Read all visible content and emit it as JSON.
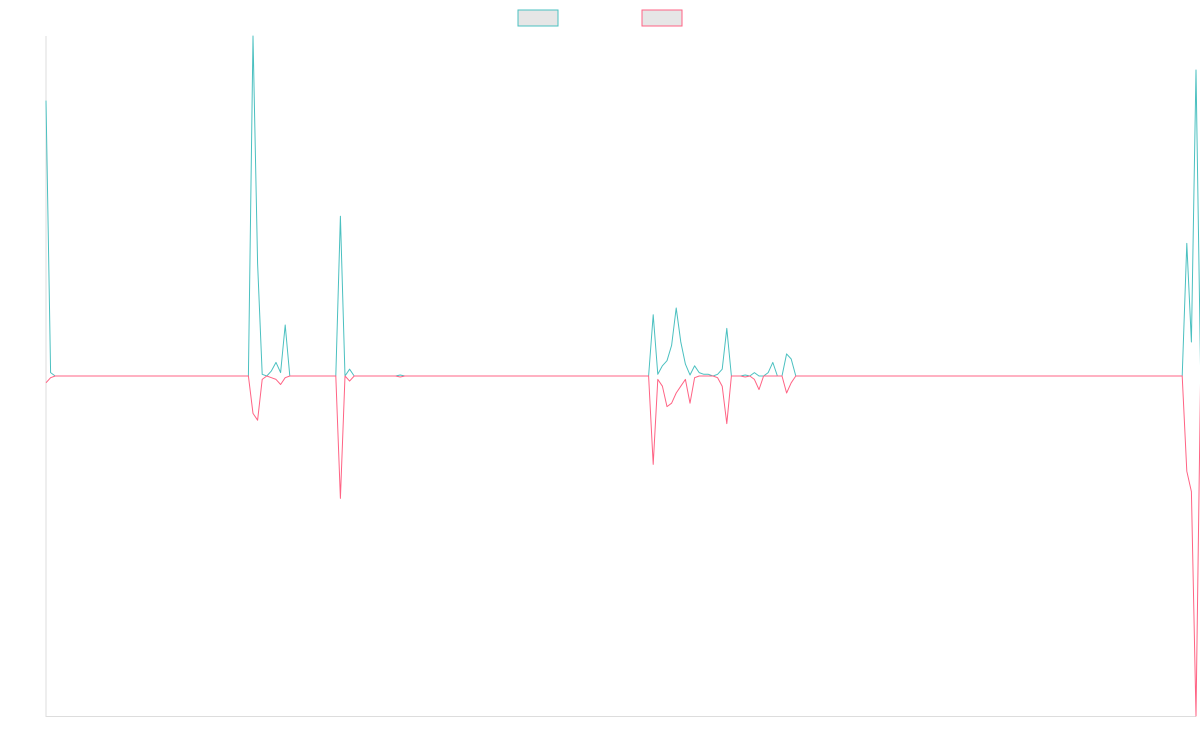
{
  "chart_data": {
    "type": "line",
    "title": "",
    "xlabel": "",
    "ylabel": "",
    "grid": false,
    "legend_position": "top",
    "ylim": [
      -1,
      1
    ],
    "x_count": 250,
    "series": [
      {
        "color": "#4bc0c0",
        "legend_fill": "#e6e6e6",
        "points": [
          [
            0,
            0.81
          ],
          [
            1,
            0.01
          ],
          [
            2,
            0
          ],
          [
            44,
            0
          ],
          [
            45,
            1.0
          ],
          [
            46,
            0.33
          ],
          [
            47,
            0.005
          ],
          [
            48,
            0
          ],
          [
            49,
            0.015
          ],
          [
            50,
            0.04
          ],
          [
            51,
            0.01
          ],
          [
            52,
            0.15
          ],
          [
            53,
            0
          ],
          [
            63,
            0
          ],
          [
            64,
            0.47
          ],
          [
            65,
            0
          ],
          [
            66,
            0.02
          ],
          [
            67,
            0
          ],
          [
            76,
            0
          ],
          [
            77,
            0.003
          ],
          [
            78,
            0
          ],
          [
            131,
            0
          ],
          [
            132,
            0.18
          ],
          [
            133,
            0.005
          ],
          [
            134,
            0.03
          ],
          [
            135,
            0.045
          ],
          [
            136,
            0.09
          ],
          [
            137,
            0.2
          ],
          [
            138,
            0.1
          ],
          [
            139,
            0.035
          ],
          [
            140,
            0.003
          ],
          [
            141,
            0.03
          ],
          [
            142,
            0.01
          ],
          [
            143,
            0.005
          ],
          [
            144,
            0.005
          ],
          [
            145,
            0
          ],
          [
            146,
            0.005
          ],
          [
            147,
            0.02
          ],
          [
            148,
            0.14
          ],
          [
            149,
            0
          ],
          [
            151,
            0
          ],
          [
            152,
            0.003
          ],
          [
            153,
            0
          ],
          [
            154,
            0.01
          ],
          [
            155,
            0
          ],
          [
            156,
            0
          ],
          [
            157,
            0.01
          ],
          [
            158,
            0.04
          ],
          [
            159,
            0
          ],
          [
            160,
            0
          ],
          [
            161,
            0.065
          ],
          [
            162,
            0.05
          ],
          [
            163,
            0
          ],
          [
            247,
            0
          ],
          [
            248,
            0.39
          ],
          [
            249,
            0.1
          ],
          [
            250,
            0.9
          ],
          [
            251,
            0.01
          ],
          [
            252,
            0.31
          ]
        ]
      },
      {
        "color": "#ff6384",
        "legend_fill": "#e6e6e6",
        "points": [
          [
            0,
            -0.02
          ],
          [
            1,
            -0.005
          ],
          [
            2,
            0
          ],
          [
            44,
            0
          ],
          [
            45,
            -0.11
          ],
          [
            46,
            -0.13
          ],
          [
            47,
            -0.01
          ],
          [
            48,
            0
          ],
          [
            49,
            -0.005
          ],
          [
            50,
            -0.01
          ],
          [
            51,
            -0.025
          ],
          [
            52,
            -0.005
          ],
          [
            53,
            0
          ],
          [
            63,
            0
          ],
          [
            64,
            -0.36
          ],
          [
            65,
            0
          ],
          [
            66,
            -0.015
          ],
          [
            67,
            0
          ],
          [
            76,
            0
          ],
          [
            77,
            -0.003
          ],
          [
            78,
            0
          ],
          [
            131,
            0
          ],
          [
            132,
            -0.26
          ],
          [
            133,
            -0.01
          ],
          [
            134,
            -0.03
          ],
          [
            135,
            -0.09
          ],
          [
            136,
            -0.08
          ],
          [
            137,
            -0.05
          ],
          [
            138,
            -0.03
          ],
          [
            139,
            -0.01
          ],
          [
            140,
            -0.08
          ],
          [
            141,
            -0.005
          ],
          [
            142,
            0
          ],
          [
            145,
            0
          ],
          [
            146,
            -0.005
          ],
          [
            147,
            -0.03
          ],
          [
            148,
            -0.14
          ],
          [
            149,
            0
          ],
          [
            151,
            0
          ],
          [
            152,
            -0.003
          ],
          [
            153,
            0
          ],
          [
            154,
            -0.01
          ],
          [
            155,
            -0.04
          ],
          [
            156,
            0
          ],
          [
            157,
            0
          ],
          [
            158,
            0
          ],
          [
            159,
            0
          ],
          [
            160,
            0
          ],
          [
            161,
            -0.05
          ],
          [
            162,
            -0.02
          ],
          [
            163,
            0
          ],
          [
            247,
            0
          ],
          [
            248,
            -0.28
          ],
          [
            249,
            -0.34
          ],
          [
            250,
            -1.0
          ],
          [
            251,
            0
          ],
          [
            252,
            -0.25
          ]
        ]
      }
    ]
  }
}
